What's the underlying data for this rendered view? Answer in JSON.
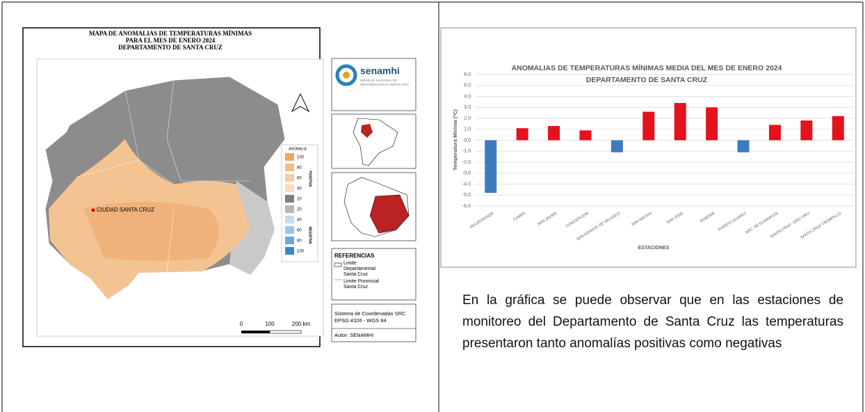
{
  "map": {
    "title": [
      "MAPA DE ANOMALIAS DE TEMPERATURAS MÍNIMAS",
      "PARA EL MES DE ENERO 2024",
      "DEPARTAMENTO DE SANTA CRUZ"
    ],
    "city": "CIUDAD SANTA CRUZ",
    "logo": {
      "name": "senamhi",
      "subtitle": [
        "SERVICIO NACIONAL DE",
        "METEOROLOGÍA E HIDROLOGÍA"
      ]
    },
    "legend": {
      "title": "ANOMALIA",
      "positive": "POSITIVA",
      "negative": "NEGATIVA",
      "items": [
        {
          "label": "100",
          "color": "#efa863"
        },
        {
          "label": "80",
          "color": "#f2bb85"
        },
        {
          "label": "60",
          "color": "#f5cda3"
        },
        {
          "label": "40",
          "color": "#f8dcbf"
        },
        {
          "label": "20",
          "color": "#7f7f7f"
        },
        {
          "label": "20",
          "color": "#b8b8b8"
        },
        {
          "label": "40",
          "color": "#c4dcf2"
        },
        {
          "label": "60",
          "color": "#9cc4ea"
        },
        {
          "label": "80",
          "color": "#6ea7dc"
        },
        {
          "label": "100",
          "color": "#3c86c8"
        }
      ]
    },
    "references": {
      "title": "REFERENCIAS",
      "items": [
        "Limite Departamental Santa Cruz",
        "Limite Provincial Santa Cruz"
      ]
    },
    "crs": [
      "Sistema de Coordenadas SRC",
      "EPSG:4326 - WGS 84"
    ],
    "author": "Autor: SENAMHI",
    "scale": [
      "0",
      "100",
      "200 km"
    ]
  },
  "paragraph": "En la gráfica se puede observar que en las estaciones de monitoreo del Departamento de Santa Cruz las temperaturas presentaron tanto anomalías positivas como negativas",
  "chart_data": {
    "type": "bar",
    "title": "ANOMALIAS DE TEMPERATURAS MÍNIMAS MEDIA DEL MES DE ENERO 2024",
    "subtitle": "DEPARTAMENTO DE SANTA CRUZ",
    "x_label": "ESTACIONES",
    "y_label": "Temperatura Mínima (ºC)",
    "categories": [
      "VALLEGRANDE",
      "CAMIRI",
      "SAN JAVIER",
      "CONCEPCION",
      "SAN IGNACIO DE VELASCO",
      "SAN MATIAS",
      "SAN JOSE",
      "ROBORE",
      "PUERTO SUAREZ",
      "ASC. DE GUARAYOS",
      "SANTA CRUZ- VIRU VIRU",
      "SANTA CRUZ-TROMPILLO"
    ],
    "values": [
      -4.8,
      1.1,
      1.3,
      0.9,
      -1.1,
      2.6,
      3.4,
      3.0,
      -1.1,
      1.4,
      1.8,
      2.2
    ],
    "colors": [
      "#3d7bbf",
      "#e3131d",
      "#e3131d",
      "#e3131d",
      "#3d7bbf",
      "#e3131d",
      "#e3131d",
      "#e3131d",
      "#3d7bbf",
      "#e3131d",
      "#e3131d",
      "#e3131d"
    ],
    "ylim": [
      -6,
      6
    ],
    "yticks": [
      {
        "value": 6,
        "label": "6.0"
      },
      {
        "value": 5,
        "label": "5.0"
      },
      {
        "value": 4,
        "label": "4.0"
      },
      {
        "value": 3,
        "label": "3.0"
      },
      {
        "value": 2,
        "label": "2.0"
      },
      {
        "value": 1,
        "label": "1.0"
      },
      {
        "value": 0,
        "label": "0.0"
      },
      {
        "value": -1,
        "label": "-1.0"
      },
      {
        "value": -2,
        "label": "-2.0"
      },
      {
        "value": -3,
        "label": "-3.0"
      },
      {
        "value": -4,
        "label": "-4.0"
      },
      {
        "value": -5,
        "label": "-5.0"
      },
      {
        "value": -6,
        "label": "-6.0"
      }
    ],
    "grid": true
  }
}
